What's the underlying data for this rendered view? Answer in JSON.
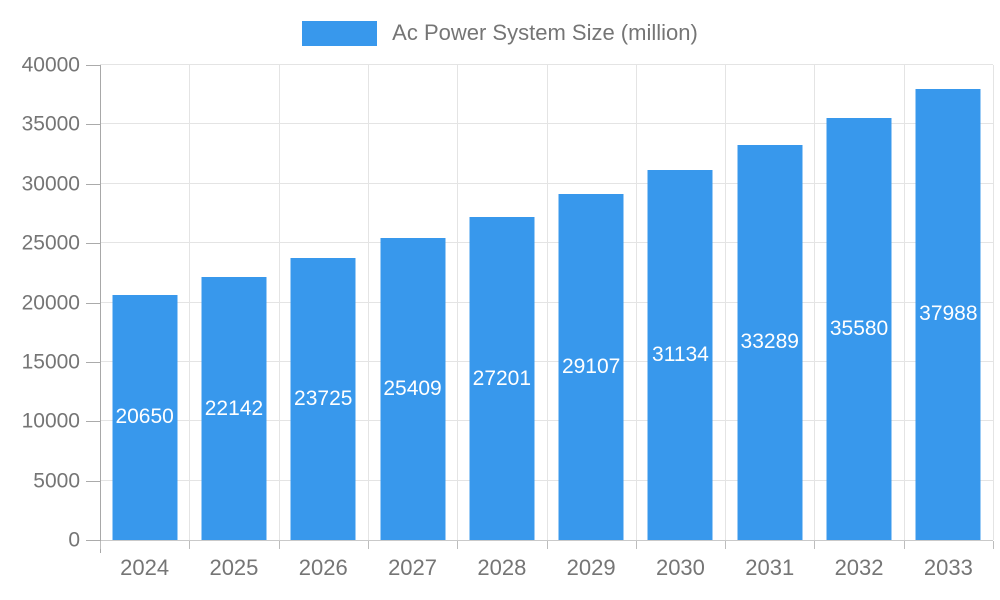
{
  "legend": {
    "label": "Ac Power System Size (million)",
    "swatch_color": "#3898ec"
  },
  "chart_data": {
    "type": "bar",
    "title": "Ac Power System Size (million)",
    "categories": [
      "2024",
      "2025",
      "2026",
      "2027",
      "2028",
      "2029",
      "2030",
      "2031",
      "2032",
      "2033"
    ],
    "values": [
      20650,
      22142,
      23725,
      25409,
      27201,
      29107,
      31134,
      33289,
      35580,
      37988
    ],
    "value_labels": [
      "20650",
      "22142",
      "23725",
      "25409",
      "27201",
      "29107",
      "31134",
      "33289",
      "35580",
      "37988"
    ],
    "xlabel": "",
    "ylabel": "",
    "ylim": [
      0,
      40000
    ],
    "ytick_labels": [
      "0",
      "5000",
      "10000",
      "15000",
      "20000",
      "25000",
      "30000",
      "35000",
      "40000"
    ],
    "grid": true,
    "legend_position": "top-center",
    "bar_color": "#3898ec",
    "value_label_color": "#ffffff",
    "axis_text_color": "#757575",
    "gridline_color": "#e4e4e4"
  }
}
